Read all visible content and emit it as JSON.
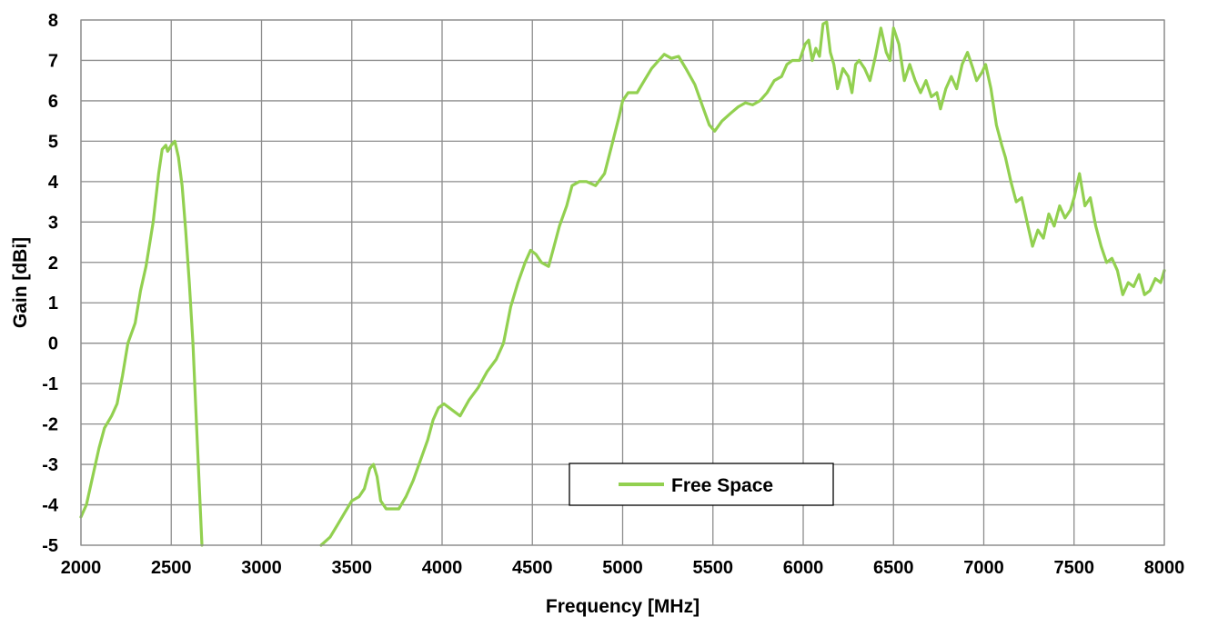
{
  "chart_data": {
    "type": "line",
    "title": "",
    "xlabel": "Frequency [MHz]",
    "ylabel": "Gain [dBi]",
    "xlim": [
      2000,
      8000
    ],
    "ylim": [
      -5,
      8
    ],
    "xticks": [
      2000,
      2500,
      3000,
      3500,
      4000,
      4500,
      5000,
      5500,
      6000,
      6500,
      7000,
      7500,
      8000
    ],
    "yticks": [
      -5,
      -4,
      -3,
      -2,
      -1,
      0,
      1,
      2,
      3,
      4,
      5,
      6,
      7,
      8
    ],
    "grid": true,
    "legend_position": "center-bottom",
    "series": [
      {
        "name": "Free Space",
        "color": "#92d050",
        "segments": [
          [
            [
              2000,
              -4.3
            ],
            [
              2030,
              -4.0
            ],
            [
              2060,
              -3.4
            ],
            [
              2100,
              -2.6
            ],
            [
              2130,
              -2.1
            ],
            [
              2170,
              -1.8
            ],
            [
              2200,
              -1.5
            ],
            [
              2230,
              -0.8
            ],
            [
              2260,
              0.0
            ],
            [
              2300,
              0.5
            ],
            [
              2330,
              1.3
            ],
            [
              2360,
              1.9
            ],
            [
              2400,
              3.0
            ],
            [
              2430,
              4.2
            ],
            [
              2450,
              4.8
            ],
            [
              2470,
              4.9
            ],
            [
              2480,
              4.75
            ],
            [
              2500,
              4.9
            ],
            [
              2520,
              5.0
            ],
            [
              2540,
              4.6
            ],
            [
              2560,
              3.9
            ],
            [
              2580,
              2.8
            ],
            [
              2600,
              1.5
            ],
            [
              2620,
              0.0
            ],
            [
              2640,
              -2.0
            ],
            [
              2660,
              -4.0
            ],
            [
              2670,
              -5.0
            ]
          ],
          [
            [
              3330,
              -5.0
            ],
            [
              3380,
              -4.8
            ],
            [
              3420,
              -4.5
            ],
            [
              3460,
              -4.2
            ],
            [
              3500,
              -3.9
            ],
            [
              3540,
              -3.8
            ],
            [
              3570,
              -3.6
            ],
            [
              3600,
              -3.1
            ],
            [
              3620,
              -3.0
            ],
            [
              3640,
              -3.3
            ],
            [
              3660,
              -3.9
            ],
            [
              3690,
              -4.1
            ],
            [
              3720,
              -4.1
            ],
            [
              3760,
              -4.1
            ],
            [
              3800,
              -3.8
            ],
            [
              3840,
              -3.4
            ],
            [
              3880,
              -2.9
            ],
            [
              3920,
              -2.4
            ],
            [
              3950,
              -1.9
            ],
            [
              3980,
              -1.6
            ],
            [
              4010,
              -1.5
            ],
            [
              4040,
              -1.6
            ],
            [
              4070,
              -1.7
            ],
            [
              4100,
              -1.8
            ],
            [
              4150,
              -1.4
            ],
            [
              4200,
              -1.1
            ],
            [
              4250,
              -0.7
            ],
            [
              4300,
              -0.4
            ],
            [
              4340,
              0.0
            ],
            [
              4380,
              0.9
            ],
            [
              4420,
              1.5
            ],
            [
              4460,
              2.0
            ],
            [
              4490,
              2.3
            ],
            [
              4520,
              2.2
            ],
            [
              4550,
              2.0
            ],
            [
              4590,
              1.9
            ],
            [
              4620,
              2.4
            ],
            [
              4650,
              2.9
            ],
            [
              4690,
              3.4
            ],
            [
              4720,
              3.9
            ],
            [
              4760,
              4.0
            ],
            [
              4800,
              4.0
            ],
            [
              4850,
              3.9
            ],
            [
              4900,
              4.2
            ],
            [
              4940,
              4.9
            ],
            [
              4980,
              5.6
            ],
            [
              5000,
              6.0
            ],
            [
              5030,
              6.2
            ],
            [
              5080,
              6.2
            ],
            [
              5120,
              6.5
            ],
            [
              5160,
              6.8
            ],
            [
              5200,
              7.0
            ],
            [
              5230,
              7.15
            ],
            [
              5270,
              7.05
            ],
            [
              5310,
              7.1
            ],
            [
              5350,
              6.8
            ],
            [
              5400,
              6.4
            ],
            [
              5440,
              5.9
            ],
            [
              5480,
              5.4
            ],
            [
              5510,
              5.25
            ],
            [
              5550,
              5.5
            ],
            [
              5600,
              5.7
            ],
            [
              5640,
              5.85
            ],
            [
              5680,
              5.95
            ],
            [
              5720,
              5.9
            ],
            [
              5760,
              6.0
            ],
            [
              5800,
              6.2
            ],
            [
              5840,
              6.5
            ],
            [
              5880,
              6.6
            ],
            [
              5910,
              6.9
            ],
            [
              5940,
              7.0
            ],
            [
              5980,
              7.0
            ],
            [
              6010,
              7.4
            ],
            [
              6030,
              7.5
            ],
            [
              6050,
              7.0
            ],
            [
              6070,
              7.3
            ],
            [
              6090,
              7.1
            ],
            [
              6110,
              7.9
            ],
            [
              6130,
              7.95
            ],
            [
              6150,
              7.2
            ],
            [
              6170,
              6.9
            ],
            [
              6190,
              6.3
            ],
            [
              6220,
              6.8
            ],
            [
              6250,
              6.6
            ],
            [
              6270,
              6.2
            ],
            [
              6290,
              6.9
            ],
            [
              6310,
              7.0
            ],
            [
              6340,
              6.8
            ],
            [
              6370,
              6.5
            ],
            [
              6400,
              7.1
            ],
            [
              6430,
              7.8
            ],
            [
              6460,
              7.2
            ],
            [
              6480,
              7.0
            ],
            [
              6500,
              7.8
            ],
            [
              6530,
              7.4
            ],
            [
              6560,
              6.5
            ],
            [
              6590,
              6.9
            ],
            [
              6620,
              6.5
            ],
            [
              6650,
              6.2
            ],
            [
              6680,
              6.5
            ],
            [
              6710,
              6.1
            ],
            [
              6740,
              6.2
            ],
            [
              6760,
              5.8
            ],
            [
              6790,
              6.3
            ],
            [
              6820,
              6.6
            ],
            [
              6850,
              6.3
            ],
            [
              6880,
              6.9
            ],
            [
              6910,
              7.2
            ],
            [
              6940,
              6.8
            ],
            [
              6960,
              6.5
            ],
            [
              6990,
              6.7
            ],
            [
              7010,
              6.9
            ],
            [
              7040,
              6.3
            ],
            [
              7070,
              5.4
            ],
            [
              7100,
              4.9
            ],
            [
              7120,
              4.6
            ],
            [
              7150,
              4.0
            ],
            [
              7180,
              3.5
            ],
            [
              7210,
              3.6
            ],
            [
              7240,
              3.0
            ],
            [
              7270,
              2.4
            ],
            [
              7300,
              2.8
            ],
            [
              7330,
              2.6
            ],
            [
              7360,
              3.2
            ],
            [
              7390,
              2.9
            ],
            [
              7420,
              3.4
            ],
            [
              7450,
              3.1
            ],
            [
              7480,
              3.3
            ],
            [
              7500,
              3.6
            ],
            [
              7530,
              4.2
            ],
            [
              7560,
              3.4
            ],
            [
              7590,
              3.6
            ],
            [
              7620,
              2.9
            ],
            [
              7650,
              2.4
            ],
            [
              7680,
              2.0
            ],
            [
              7710,
              2.1
            ],
            [
              7740,
              1.8
            ],
            [
              7770,
              1.2
            ],
            [
              7800,
              1.5
            ],
            [
              7830,
              1.4
            ],
            [
              7860,
              1.7
            ],
            [
              7890,
              1.2
            ],
            [
              7920,
              1.3
            ],
            [
              7950,
              1.6
            ],
            [
              7980,
              1.5
            ],
            [
              8000,
              1.8
            ]
          ]
        ]
      }
    ]
  }
}
